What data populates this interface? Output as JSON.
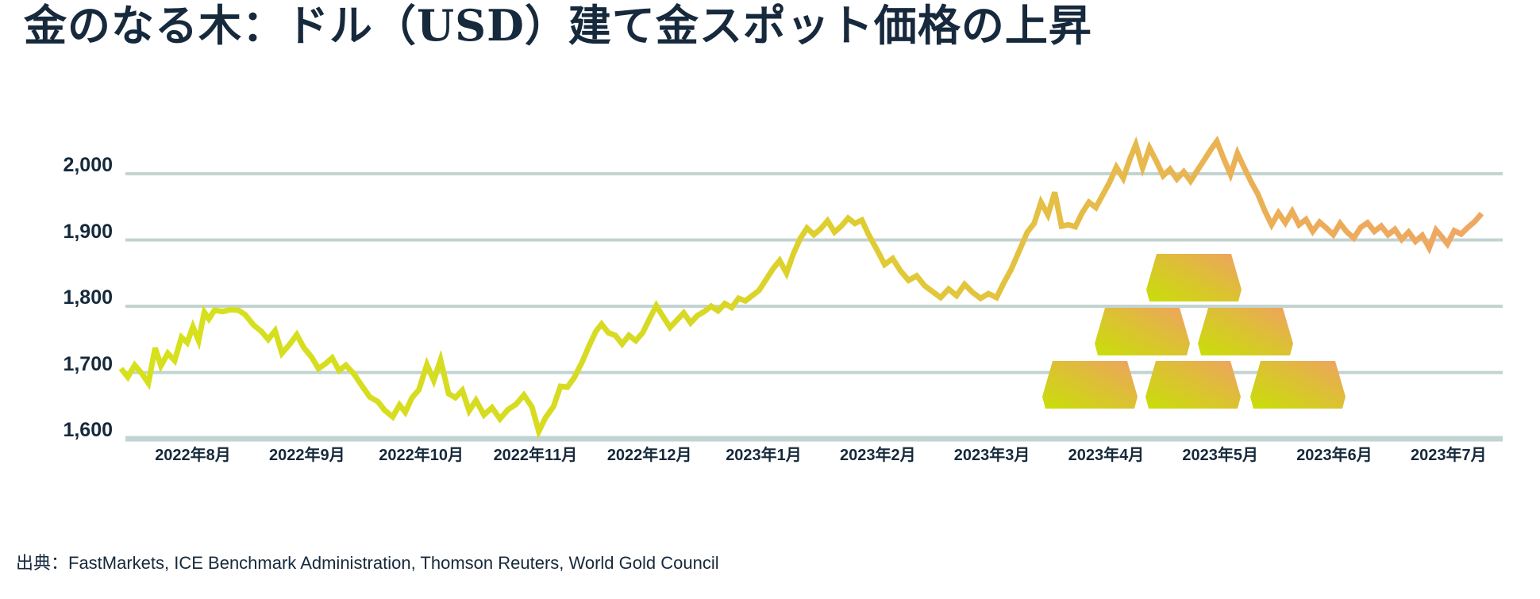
{
  "title": "金のなる木：ドル（USD）建て金スポット価格の上昇",
  "source": "出典：FastMarkets, ICE Benchmark Administration, Thomson Reuters, World Gold Council",
  "colors": {
    "title_text": "#17293c",
    "axis_text": "#16293b",
    "gridline": "#c2d4d1",
    "line_gradient": [
      "#d6e11b",
      "#d7da23",
      "#dfcc33",
      "#e6bb4a",
      "#ecac5b",
      "#f0a763"
    ],
    "ingot_gradient": [
      "#c8df08",
      "#dcc133",
      "#efa263"
    ]
  },
  "decoration": {
    "icon": "gold-ingot-pyramid-icon",
    "ingot_count": 6,
    "rows": [
      1,
      2,
      3
    ]
  },
  "chart_data": {
    "type": "line",
    "title": "金のなる木：ドル（USD）建て金スポット価格の上昇",
    "series_name": "金スポット価格（USD）",
    "x_unit": "months relative to the 2022年8月 tick (1 unit = 1 month)",
    "x_tick_labels": [
      "2022年8月",
      "2022年9月",
      "2022年10月",
      "2022年11月",
      "2022年12月",
      "2023年1月",
      "2023年2月",
      "2023年3月",
      "2023年4月",
      "2023年5月",
      "2023年6月",
      "2023年7月"
    ],
    "y_tick_values": [
      2000,
      1900,
      1800,
      1700,
      1600
    ],
    "y_tick_labels": [
      "2,000",
      "1,900",
      "1,800",
      "1,700",
      "1,600"
    ],
    "ylim": [
      1600,
      2060
    ],
    "grid": "horizontal",
    "legend": "none",
    "series": [
      {
        "name": "金スポット価格（USD）",
        "points": [
          [
            -0.63,
            1706
          ],
          [
            -0.57,
            1693
          ],
          [
            -0.51,
            1711
          ],
          [
            -0.45,
            1699
          ],
          [
            -0.39,
            1684
          ],
          [
            -0.33,
            1737
          ],
          [
            -0.28,
            1710
          ],
          [
            -0.22,
            1729
          ],
          [
            -0.16,
            1718
          ],
          [
            -0.1,
            1753
          ],
          [
            -0.05,
            1745
          ],
          [
            0.0,
            1769
          ],
          [
            0.05,
            1748
          ],
          [
            0.1,
            1791
          ],
          [
            0.14,
            1781
          ],
          [
            0.19,
            1794
          ],
          [
            0.26,
            1792
          ],
          [
            0.33,
            1795
          ],
          [
            0.4,
            1794
          ],
          [
            0.46,
            1787
          ],
          [
            0.53,
            1772
          ],
          [
            0.6,
            1762
          ],
          [
            0.66,
            1750
          ],
          [
            0.72,
            1763
          ],
          [
            0.78,
            1729
          ],
          [
            0.85,
            1743
          ],
          [
            0.91,
            1757
          ],
          [
            0.97,
            1738
          ],
          [
            1.04,
            1723
          ],
          [
            1.1,
            1706
          ],
          [
            1.16,
            1713
          ],
          [
            1.22,
            1722
          ],
          [
            1.28,
            1703
          ],
          [
            1.34,
            1711
          ],
          [
            1.41,
            1698
          ],
          [
            1.48,
            1680
          ],
          [
            1.55,
            1663
          ],
          [
            1.62,
            1656
          ],
          [
            1.68,
            1643
          ],
          [
            1.75,
            1633
          ],
          [
            1.81,
            1651
          ],
          [
            1.86,
            1640
          ],
          [
            1.92,
            1662
          ],
          [
            1.98,
            1674
          ],
          [
            2.05,
            1712
          ],
          [
            2.11,
            1688
          ],
          [
            2.17,
            1719
          ],
          [
            2.24,
            1668
          ],
          [
            2.3,
            1662
          ],
          [
            2.36,
            1673
          ],
          [
            2.42,
            1642
          ],
          [
            2.48,
            1658
          ],
          [
            2.55,
            1636
          ],
          [
            2.62,
            1647
          ],
          [
            2.69,
            1630
          ],
          [
            2.76,
            1644
          ],
          [
            2.83,
            1652
          ],
          [
            2.9,
            1666
          ],
          [
            2.97,
            1648
          ],
          [
            3.03,
            1611
          ],
          [
            3.09,
            1632
          ],
          [
            3.16,
            1649
          ],
          [
            3.22,
            1679
          ],
          [
            3.28,
            1678
          ],
          [
            3.34,
            1692
          ],
          [
            3.41,
            1716
          ],
          [
            3.47,
            1740
          ],
          [
            3.53,
            1762
          ],
          [
            3.58,
            1773
          ],
          [
            3.64,
            1760
          ],
          [
            3.7,
            1756
          ],
          [
            3.76,
            1743
          ],
          [
            3.82,
            1756
          ],
          [
            3.88,
            1748
          ],
          [
            3.94,
            1760
          ],
          [
            4.0,
            1781
          ],
          [
            4.06,
            1801
          ],
          [
            4.12,
            1784
          ],
          [
            4.18,
            1768
          ],
          [
            4.24,
            1779
          ],
          [
            4.3,
            1790
          ],
          [
            4.36,
            1775
          ],
          [
            4.42,
            1786
          ],
          [
            4.48,
            1792
          ],
          [
            4.54,
            1800
          ],
          [
            4.6,
            1793
          ],
          [
            4.66,
            1804
          ],
          [
            4.72,
            1798
          ],
          [
            4.78,
            1812
          ],
          [
            4.84,
            1808
          ],
          [
            4.9,
            1816
          ],
          [
            4.96,
            1824
          ],
          [
            5.02,
            1840
          ],
          [
            5.08,
            1856
          ],
          [
            5.14,
            1869
          ],
          [
            5.2,
            1850
          ],
          [
            5.26,
            1879
          ],
          [
            5.32,
            1902
          ],
          [
            5.38,
            1918
          ],
          [
            5.44,
            1908
          ],
          [
            5.5,
            1917
          ],
          [
            5.56,
            1929
          ],
          [
            5.62,
            1912
          ],
          [
            5.68,
            1921
          ],
          [
            5.74,
            1933
          ],
          [
            5.8,
            1925
          ],
          [
            5.86,
            1930
          ],
          [
            5.92,
            1908
          ],
          [
            5.99,
            1886
          ],
          [
            6.06,
            1863
          ],
          [
            6.13,
            1872
          ],
          [
            6.2,
            1853
          ],
          [
            6.27,
            1839
          ],
          [
            6.34,
            1846
          ],
          [
            6.41,
            1831
          ],
          [
            6.48,
            1822
          ],
          [
            6.55,
            1813
          ],
          [
            6.62,
            1826
          ],
          [
            6.69,
            1816
          ],
          [
            6.76,
            1833
          ],
          [
            6.83,
            1821
          ],
          [
            6.9,
            1812
          ],
          [
            6.97,
            1819
          ],
          [
            7.04,
            1813
          ],
          [
            7.1,
            1834
          ],
          [
            7.17,
            1856
          ],
          [
            7.24,
            1884
          ],
          [
            7.31,
            1912
          ],
          [
            7.37,
            1925
          ],
          [
            7.43,
            1957
          ],
          [
            7.49,
            1938
          ],
          [
            7.55,
            1972
          ],
          [
            7.61,
            1921
          ],
          [
            7.67,
            1923
          ],
          [
            7.73,
            1920
          ],
          [
            7.79,
            1941
          ],
          [
            7.85,
            1957
          ],
          [
            7.91,
            1949
          ],
          [
            7.97,
            1968
          ],
          [
            8.03,
            1987
          ],
          [
            8.09,
            2010
          ],
          [
            8.15,
            1993
          ],
          [
            8.21,
            2023
          ],
          [
            8.26,
            2044
          ],
          [
            8.32,
            2009
          ],
          [
            8.38,
            2039
          ],
          [
            8.44,
            2019
          ],
          [
            8.5,
            1997
          ],
          [
            8.56,
            2007
          ],
          [
            8.62,
            1992
          ],
          [
            8.68,
            2003
          ],
          [
            8.74,
            1989
          ],
          [
            8.8,
            2005
          ],
          [
            8.86,
            2021
          ],
          [
            8.92,
            2037
          ],
          [
            8.97,
            2049
          ],
          [
            9.03,
            2023
          ],
          [
            9.09,
            1999
          ],
          [
            9.15,
            2031
          ],
          [
            9.21,
            2009
          ],
          [
            9.27,
            1988
          ],
          [
            9.33,
            1969
          ],
          [
            9.39,
            1944
          ],
          [
            9.45,
            1923
          ],
          [
            9.51,
            1941
          ],
          [
            9.57,
            1926
          ],
          [
            9.63,
            1943
          ],
          [
            9.69,
            1923
          ],
          [
            9.75,
            1931
          ],
          [
            9.81,
            1913
          ],
          [
            9.87,
            1927
          ],
          [
            9.93,
            1918
          ],
          [
            9.99,
            1908
          ],
          [
            10.05,
            1925
          ],
          [
            10.11,
            1912
          ],
          [
            10.17,
            1903
          ],
          [
            10.23,
            1919
          ],
          [
            10.29,
            1926
          ],
          [
            10.35,
            1913
          ],
          [
            10.41,
            1921
          ],
          [
            10.47,
            1908
          ],
          [
            10.53,
            1916
          ],
          [
            10.59,
            1901
          ],
          [
            10.65,
            1912
          ],
          [
            10.71,
            1898
          ],
          [
            10.77,
            1907
          ],
          [
            10.83,
            1888
          ],
          [
            10.89,
            1915
          ],
          [
            10.94,
            1905
          ],
          [
            10.99,
            1894
          ],
          [
            11.05,
            1914
          ],
          [
            11.11,
            1909
          ],
          [
            11.17,
            1919
          ],
          [
            11.23,
            1928
          ],
          [
            11.29,
            1940
          ]
        ]
      }
    ]
  }
}
